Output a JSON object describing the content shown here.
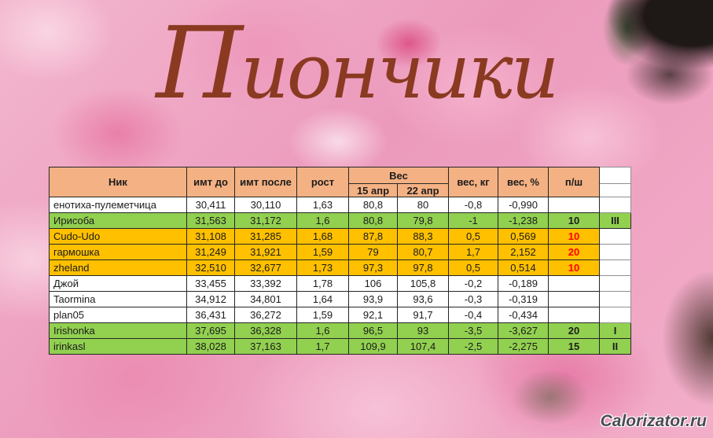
{
  "page": {
    "title": "Пиончики",
    "watermark": "Calorizator.ru"
  },
  "colors": {
    "header_bg": "#F4B183",
    "green": "#92D050",
    "gold": "#FFC000",
    "red_text": "#FF0000",
    "title_brown": "#8A3A21"
  },
  "table": {
    "headers": {
      "nick": "Ник",
      "bmi_before": "имт до",
      "bmi_after": "имт после",
      "height": "рост",
      "weight_group": "Вес",
      "w_apr15": "15 апр",
      "w_apr22": "22 апр",
      "weight_kg": "вес, кг",
      "weight_pct": "вес, %",
      "psh": "п/ш"
    },
    "rows": [
      {
        "name": "енотиха-пулеметчица",
        "bmi_before": "30,411",
        "bmi_after": "30,110",
        "height": "1,63",
        "w_apr15": "80,8",
        "w_apr22": "80",
        "weight_kg": "-0,8",
        "weight_pct": "-0,990",
        "psh": "",
        "psh_red": false,
        "rank": "",
        "color": "white"
      },
      {
        "name": "Ирисоба",
        "bmi_before": "31,563",
        "bmi_after": "31,172",
        "height": "1,6",
        "w_apr15": "80,8",
        "w_apr22": "79,8",
        "weight_kg": "-1",
        "weight_pct": "-1,238",
        "psh": "10",
        "psh_red": false,
        "rank": "III",
        "color": "green"
      },
      {
        "name": "Cudo-Udo",
        "bmi_before": "31,108",
        "bmi_after": "31,285",
        "height": "1,68",
        "w_apr15": "87,8",
        "w_apr22": "88,3",
        "weight_kg": "0,5",
        "weight_pct": "0,569",
        "psh": "10",
        "psh_red": true,
        "rank": "",
        "color": "gold"
      },
      {
        "name": "гармошка",
        "bmi_before": "31,249",
        "bmi_after": "31,921",
        "height": "1,59",
        "w_apr15": "79",
        "w_apr22": "80,7",
        "weight_kg": "1,7",
        "weight_pct": "2,152",
        "psh": "20",
        "psh_red": true,
        "rank": "",
        "color": "gold"
      },
      {
        "name": "zheland",
        "bmi_before": "32,510",
        "bmi_after": "32,677",
        "height": "1,73",
        "w_apr15": "97,3",
        "w_apr22": "97,8",
        "weight_kg": "0,5",
        "weight_pct": "0,514",
        "psh": "10",
        "psh_red": true,
        "rank": "",
        "color": "gold"
      },
      {
        "name": "Джой",
        "bmi_before": "33,455",
        "bmi_after": "33,392",
        "height": "1,78",
        "w_apr15": "106",
        "w_apr22": "105,8",
        "weight_kg": "-0,2",
        "weight_pct": "-0,189",
        "psh": "",
        "psh_red": false,
        "rank": "",
        "color": "white"
      },
      {
        "name": "Taormina",
        "bmi_before": "34,912",
        "bmi_after": "34,801",
        "height": "1,64",
        "w_apr15": "93,9",
        "w_apr22": "93,6",
        "weight_kg": "-0,3",
        "weight_pct": "-0,319",
        "psh": "",
        "psh_red": false,
        "rank": "",
        "color": "white"
      },
      {
        "name": "plan05",
        "bmi_before": "36,431",
        "bmi_after": "36,272",
        "height": "1,59",
        "w_apr15": "92,1",
        "w_apr22": "91,7",
        "weight_kg": "-0,4",
        "weight_pct": "-0,434",
        "psh": "",
        "psh_red": false,
        "rank": "",
        "color": "white"
      },
      {
        "name": "Irishonka",
        "bmi_before": "37,695",
        "bmi_after": "36,328",
        "height": "1,6",
        "w_apr15": "96,5",
        "w_apr22": "93",
        "weight_kg": "-3,5",
        "weight_pct": "-3,627",
        "psh": "20",
        "psh_red": false,
        "rank": "I",
        "color": "green"
      },
      {
        "name": "irinkasl",
        "bmi_before": "38,028",
        "bmi_after": "37,163",
        "height": "1,7",
        "w_apr15": "109,9",
        "w_apr22": "107,4",
        "weight_kg": "-2,5",
        "weight_pct": "-2,275",
        "psh": "15",
        "psh_red": false,
        "rank": "II",
        "color": "green"
      }
    ]
  }
}
